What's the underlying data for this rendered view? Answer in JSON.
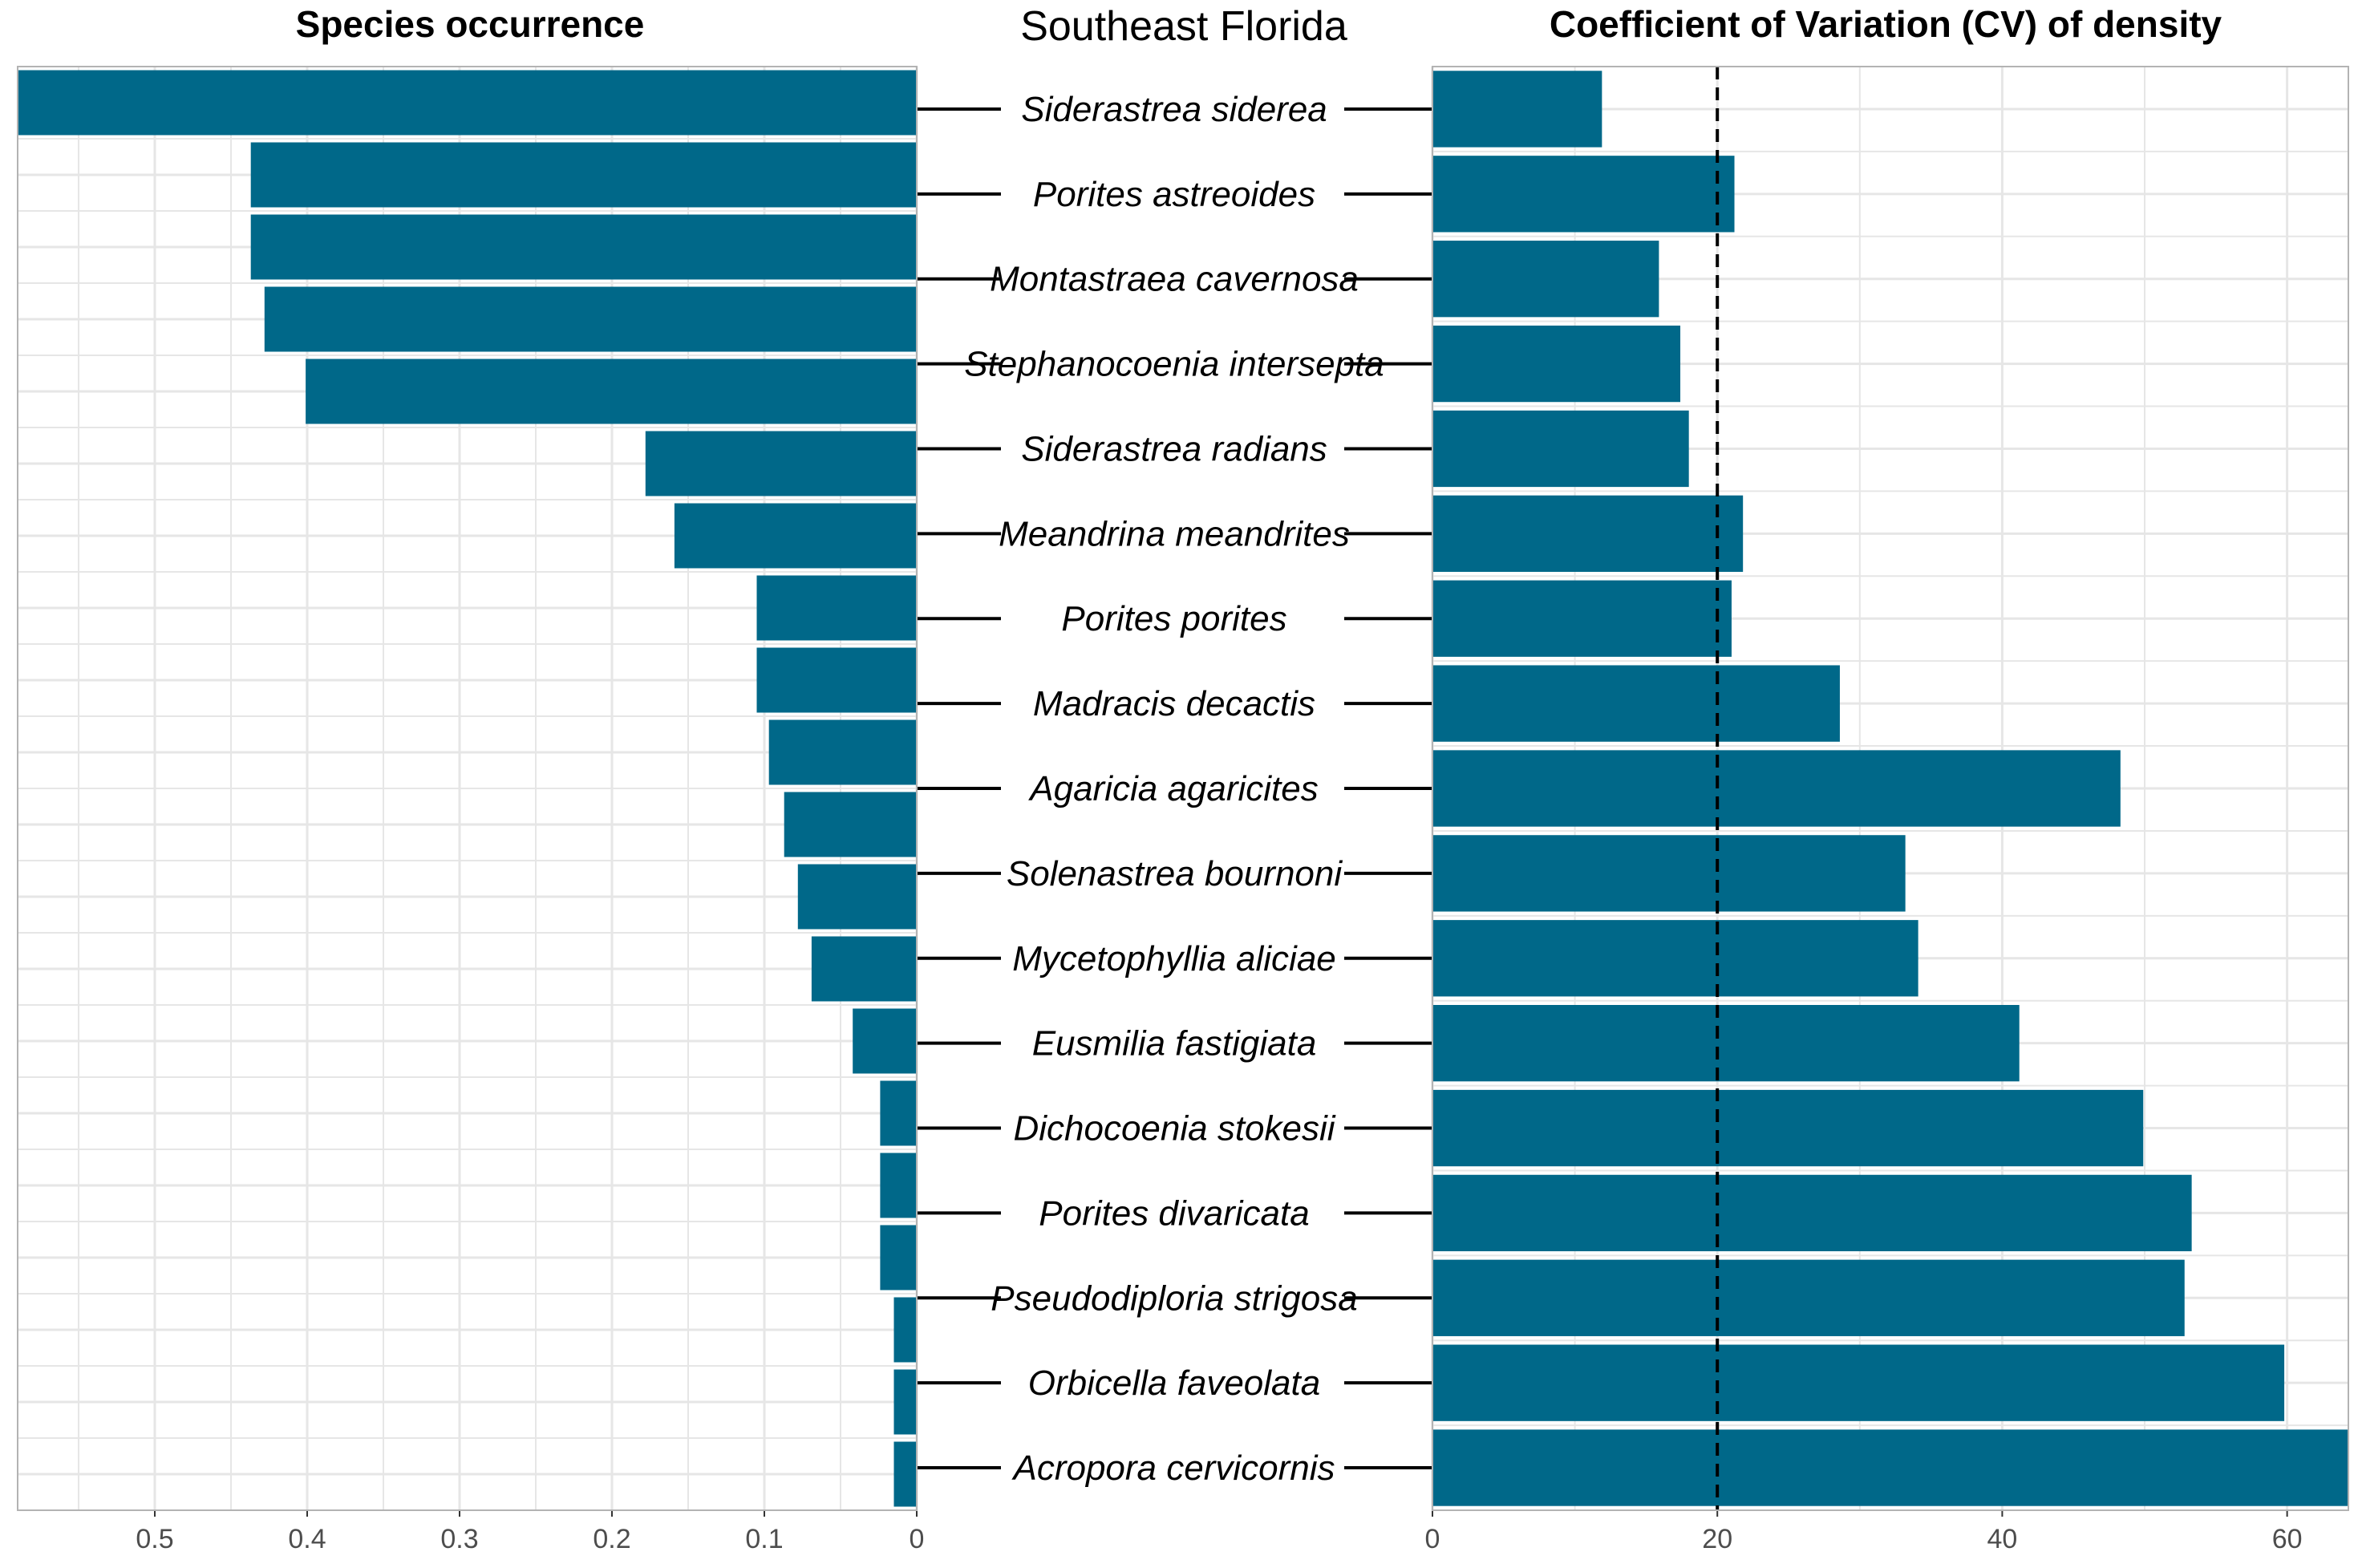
{
  "center_title": "Southeast Florida",
  "colors": {
    "bar": "#006889",
    "grid": "#e6e6e6",
    "panel_border": "#b3b3b3"
  },
  "chart_data": [
    {
      "type": "bar",
      "orientation": "horizontal",
      "title": "Species occurrence",
      "x_reversed": true,
      "xlim": [
        0,
        0.59
      ],
      "xticks": [
        0,
        0.1,
        0.2,
        0.3,
        0.4,
        0.5
      ],
      "xtick_labels": [
        "0",
        "0.1",
        "0.2",
        "0.3",
        "0.4",
        "0.5"
      ],
      "grid": true,
      "categories": [
        "Siderastrea siderea",
        "",
        "Porites astreoides",
        "",
        "Montastraea cavernosa",
        "",
        "Stephanocoenia intersepta",
        "",
        "Siderastrea radians",
        "",
        "Meandrina meandrites",
        "",
        "Porites porites",
        "",
        "Madracis decactis",
        "",
        "Agaricia agaricites",
        "",
        "Solenastrea bournoni",
        ""
      ],
      "values": [
        0.59,
        0.437,
        0.437,
        0.428,
        0.401,
        0.178,
        0.159,
        0.105,
        0.105,
        0.097,
        0.087,
        0.078,
        0.069,
        0.042,
        0.024,
        0.024,
        0.024,
        0.015,
        0.015,
        0.015
      ]
    },
    {
      "type": "bar",
      "orientation": "horizontal",
      "title": "Coefficient of Variation (CV) of density",
      "xlim": [
        0,
        64.3
      ],
      "xticks": [
        0,
        20,
        40,
        60
      ],
      "xtick_labels": [
        "0",
        "20",
        "40",
        "60"
      ],
      "reference_line": {
        "x": 20,
        "style": "dashed"
      },
      "grid": true,
      "categories": [
        "Siderastrea siderea",
        "Porites astreoides",
        "Montastraea cavernosa",
        "Stephanocoenia intersepta",
        "Siderastrea radians",
        "Meandrina meandrites",
        "Porites porites",
        "Madracis decactis",
        "Agaricia agaricites",
        "Solenastrea bournoni",
        "Mycetophyllia aliciae",
        "Eusmilia fastigiata",
        "Dichocoenia stokesii",
        "Porites divaricata",
        "Pseudodiploria strigosa",
        "Orbicella faveolata",
        "Acropora cervicornis"
      ],
      "values": [
        11.9,
        21.2,
        15.9,
        17.4,
        18.0,
        21.8,
        21.0,
        28.6,
        48.3,
        33.2,
        34.1,
        41.2,
        49.9,
        53.3,
        52.8,
        59.8,
        64.3
      ]
    }
  ]
}
